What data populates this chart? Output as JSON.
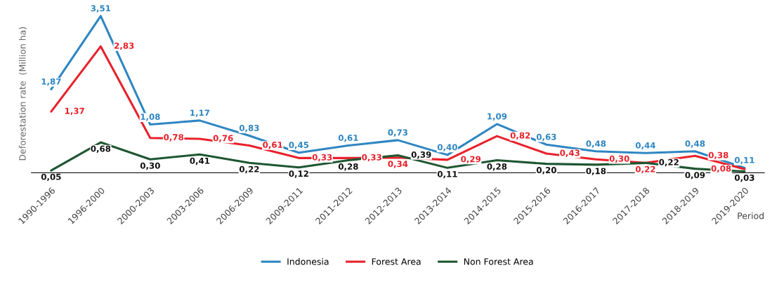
{
  "chart_data": {
    "type": "line",
    "ylabel": "Deforestation rate  (Million ha)",
    "xlabel": "Period",
    "categories": [
      "1990-1996",
      "1996-2000",
      "2000-2003",
      "2003-2006",
      "2006-2009",
      "2009-2011",
      "2011-2012",
      "2012-2013",
      "2013-2014",
      "2014-2015",
      "2015-2016",
      "2016-2017",
      "2017-2018",
      "2018-2019",
      "2019-2020"
    ],
    "tick_labels": "x",
    "legend": "bottom",
    "grid": false,
    "marker": "none",
    "line_style": "solid",
    "series": [
      {
        "name": "Indonesia",
        "color": "#2e86c1",
        "values": [
          1.87,
          3.51,
          1.08,
          1.17,
          0.83,
          0.45,
          0.61,
          0.73,
          0.4,
          1.09,
          0.63,
          0.48,
          0.44,
          0.48,
          0.11
        ],
        "value_labels": [
          "1,87",
          "3,51",
          "1,08",
          "1,17",
          "0,83",
          "0,45",
          "0,61",
          "0,73",
          "0,40",
          "1,09",
          "0,63",
          "0,48",
          "0,44",
          "0,48",
          "0,11"
        ]
      },
      {
        "name": "Forest Area",
        "color": "#e8212b",
        "values": [
          1.37,
          2.83,
          0.78,
          0.76,
          0.61,
          0.33,
          0.33,
          0.34,
          0.29,
          0.82,
          0.43,
          0.3,
          0.22,
          0.38,
          0.08
        ],
        "value_labels": [
          "1,37",
          "2,83",
          "0,78",
          "0,76",
          "0,61",
          "0,33",
          "0,33",
          "0,34",
          "0,29",
          "0,82",
          "0,43",
          "0,30",
          "0,22",
          "0,38",
          "0,08"
        ]
      },
      {
        "name": "Non Forest Area",
        "color": "#1e5631",
        "values": [
          0.05,
          0.68,
          0.3,
          0.41,
          0.22,
          0.12,
          0.28,
          0.39,
          0.11,
          0.28,
          0.2,
          0.18,
          0.22,
          0.09,
          0.03
        ],
        "value_labels": [
          "0,05",
          "0,68",
          "0,30",
          "0,41",
          "0,22",
          "0,12",
          "0,28",
          "0,39",
          "0,11",
          "0,28",
          "0,20",
          "0,18",
          "0,22",
          "0,09",
          "0,03"
        ]
      }
    ]
  }
}
